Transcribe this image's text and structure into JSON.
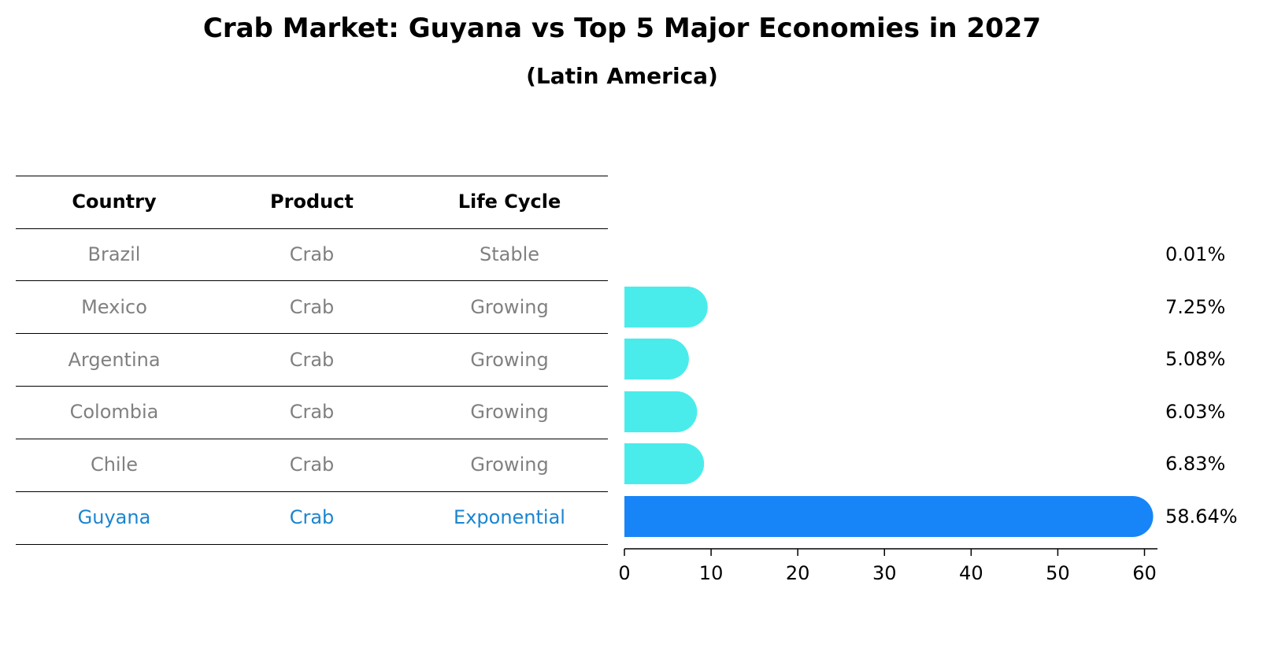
{
  "title": "Crab Market: Guyana vs Top 5 Major Economies in 2027",
  "subtitle": "(Latin America)",
  "table": {
    "headers": [
      "Country",
      "Product",
      "Life Cycle"
    ],
    "rows": [
      {
        "country": "Brazil",
        "product": "Crab",
        "life_cycle": "Stable"
      },
      {
        "country": "Mexico",
        "product": "Crab",
        "life_cycle": "Growing"
      },
      {
        "country": "Argentina",
        "product": "Crab",
        "life_cycle": "Growing"
      },
      {
        "country": "Colombia",
        "product": "Crab",
        "life_cycle": "Growing"
      },
      {
        "country": "Chile",
        "product": "Crab",
        "life_cycle": "Growing"
      },
      {
        "country": "Guyana",
        "product": "Crab",
        "life_cycle": "Exponential"
      }
    ]
  },
  "colors": {
    "muted_text": "#808080",
    "highlight_text": "#1a85d0",
    "bar_default": "#4aeceb",
    "bar_highlight": "#1785f7"
  },
  "chart_data": {
    "type": "bar",
    "orientation": "horizontal",
    "categories": [
      "Brazil",
      "Mexico",
      "Argentina",
      "Colombia",
      "Chile",
      "Guyana"
    ],
    "values": [
      0.01,
      7.25,
      5.08,
      6.03,
      6.83,
      58.64
    ],
    "value_labels": [
      "0.01%",
      "7.25%",
      "5.08%",
      "6.03%",
      "6.83%",
      "58.64%"
    ],
    "highlight": "Guyana",
    "xlim": [
      0,
      61.5
    ],
    "xticks": [
      0,
      10,
      20,
      30,
      40,
      50,
      60
    ],
    "xtick_labels": [
      "0",
      "10",
      "20",
      "30",
      "40",
      "50",
      "60"
    ],
    "xlabel": "",
    "ylabel": ""
  }
}
